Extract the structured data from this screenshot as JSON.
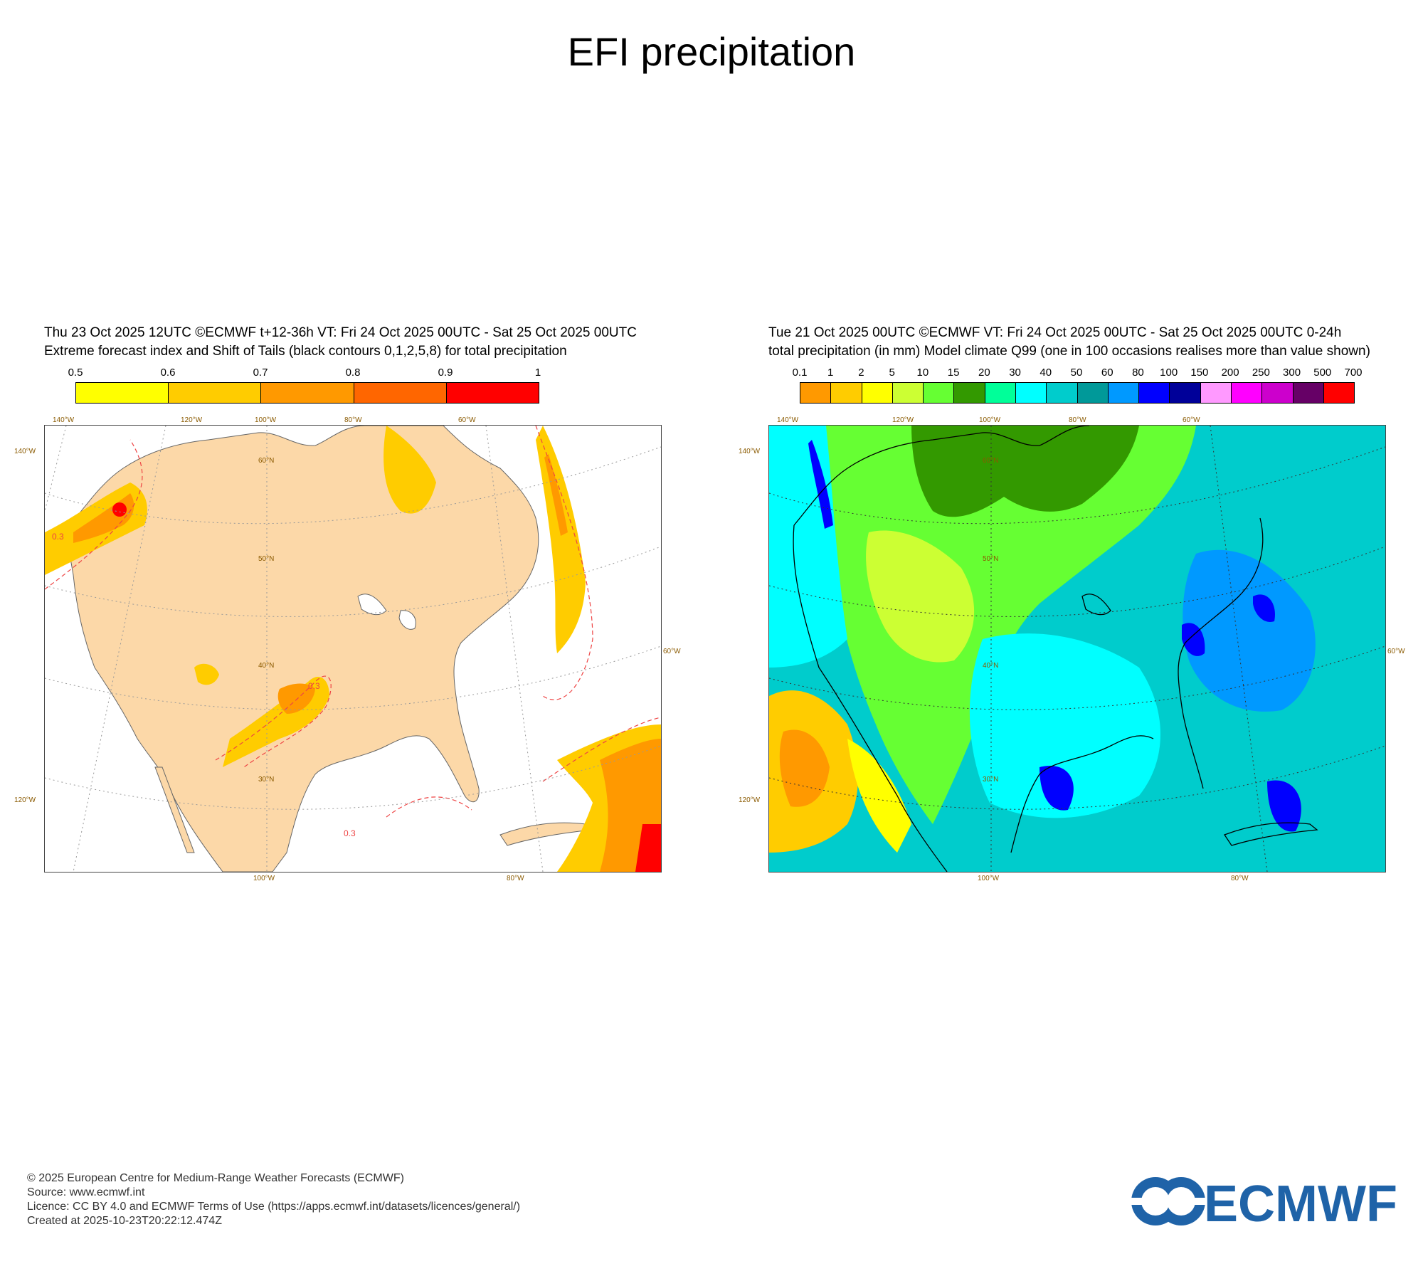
{
  "page": {
    "title": "EFI precipitation"
  },
  "left_panel": {
    "line1": "Thu 23 Oct 2025 12UTC ©ECMWF t+12-36h  VT: Fri 24 Oct 2025 00UTC - Sat 25 Oct 2025 00UTC",
    "line2": "Extreme forecast index and Shift of Tails (black contours 0,1,2,5,8) for total precipitation",
    "colorbar": {
      "ticks": [
        "0.5",
        "0.6",
        "0.7",
        "0.8",
        "0.9",
        "1"
      ],
      "colors": [
        "#ffff00",
        "#ffcc00",
        "#ff9900",
        "#ff6600",
        "#ff0000"
      ]
    },
    "contour_label": "0.3",
    "axis": {
      "top": [
        "140°W",
        "120°W",
        "100°W",
        "80°W",
        "60°W"
      ],
      "bottom": [
        "100°W",
        "80°W"
      ],
      "left": [
        "140°W",
        "120°W"
      ],
      "right": [
        "60°W"
      ],
      "lat": [
        "60°N",
        "50°N",
        "40°N",
        "30°N"
      ]
    }
  },
  "right_panel": {
    "line1": "Tue 21 Oct 2025 00UTC ©ECMWF VT: Fri 24 Oct 2025 00UTC - Sat 25 Oct 2025 00UTC   0-24h",
    "line2": "total precipitation (in mm)  Model climate Q99 (one in 100 occasions realises more than value shown)",
    "colorbar": {
      "ticks": [
        "0.1",
        "1",
        "2",
        "5",
        "10",
        "15",
        "20",
        "30",
        "40",
        "50",
        "60",
        "80",
        "100",
        "150",
        "200",
        "250",
        "300",
        "500",
        "700"
      ],
      "colors": [
        "#ff9900",
        "#ffcc00",
        "#ffff00",
        "#ccff33",
        "#66ff33",
        "#339900",
        "#00ff99",
        "#00ffff",
        "#00cccc",
        "#009999",
        "#0099ff",
        "#0000ff",
        "#000099",
        "#ff99ff",
        "#ff00ff",
        "#cc00cc",
        "#660066",
        "#ff0000"
      ]
    },
    "axis": {
      "top": [
        "140°W",
        "120°W",
        "100°W",
        "80°W",
        "60°W"
      ],
      "bottom": [
        "100°W",
        "80°W"
      ],
      "left": [
        "140°W",
        "120°W"
      ],
      "right": [
        "60°W"
      ],
      "lat": [
        "60°N",
        "50°N",
        "40°N",
        "30°N"
      ]
    }
  },
  "footer": {
    "line1": "© 2025 European Centre for Medium-Range Weather Forecasts (ECMWF)",
    "line2": "Source: www.ecmwf.int",
    "line3": "Licence: CC BY 4.0 and ECMWF Terms of Use (https://apps.ecmwf.int/datasets/licences/general/)",
    "line4": "Created at 2025-10-23T20:22:12.474Z"
  },
  "logo": {
    "text": "ECMWF",
    "color": "#1f63a8"
  }
}
